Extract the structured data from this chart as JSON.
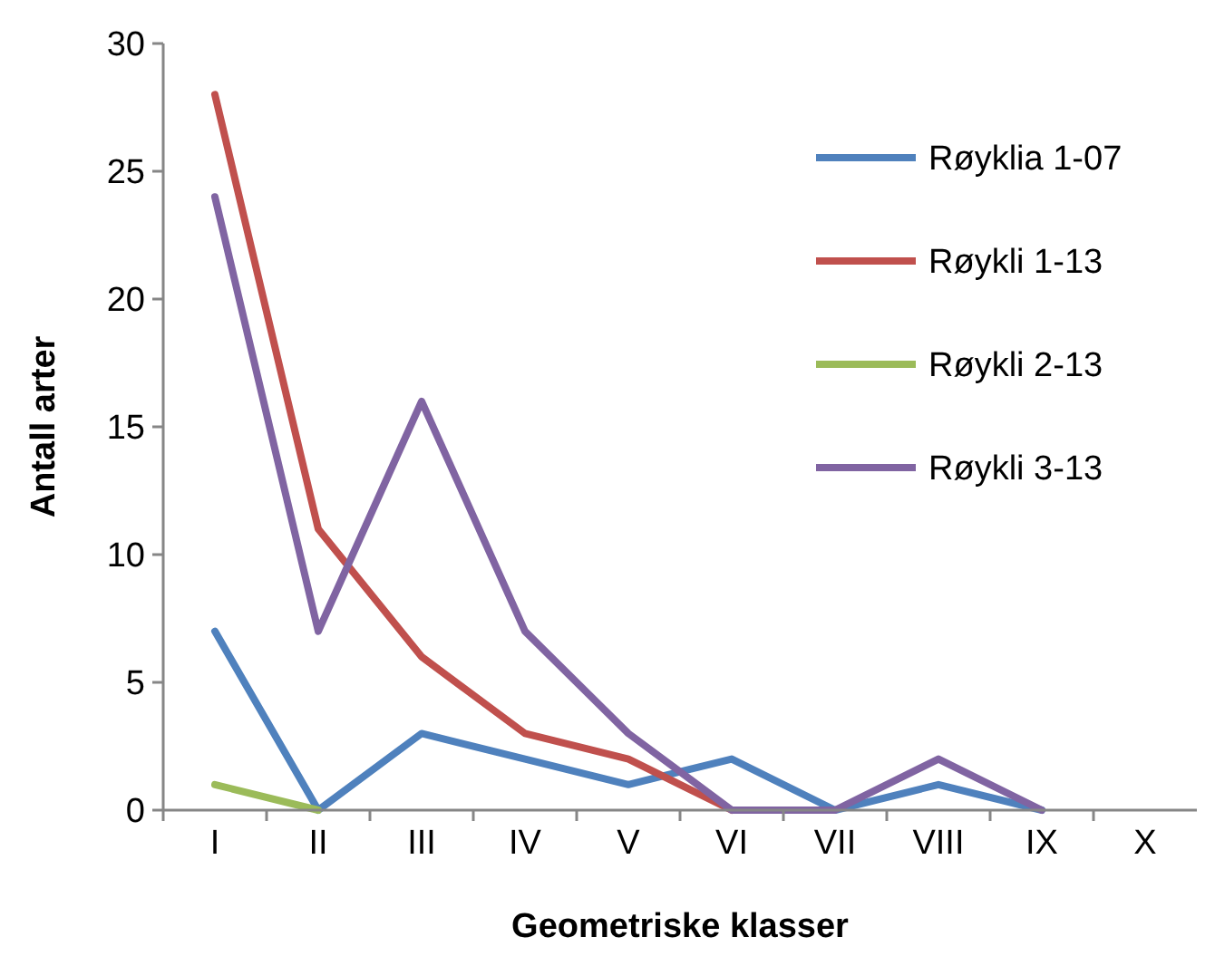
{
  "chart_data": {
    "type": "line",
    "xlabel": "Geometriske klasser",
    "ylabel": "Antall arter",
    "categories": [
      "I",
      "II",
      "III",
      "IV",
      "V",
      "VI",
      "VII",
      "VIII",
      "IX",
      "X"
    ],
    "ylim": [
      0,
      30
    ],
    "yticks": [
      0,
      5,
      10,
      15,
      20,
      25,
      30
    ],
    "grid": false,
    "legend": "top right",
    "marker": "none",
    "line_style": "solid",
    "series": [
      {
        "name": "Røyklia 1-07",
        "color": "#4f81bd",
        "values": [
          7,
          0,
          3,
          2,
          1,
          2,
          0,
          1,
          0,
          null
        ]
      },
      {
        "name": "Røykli 1-13",
        "color": "#c0504d",
        "values": [
          28,
          11,
          6,
          3,
          2,
          0,
          null,
          null,
          null,
          null
        ]
      },
      {
        "name": "Røykli 2-13",
        "color": "#9bbb59",
        "values": [
          1,
          0,
          null,
          null,
          null,
          null,
          null,
          null,
          null,
          null
        ]
      },
      {
        "name": "Røykli 3-13",
        "color": "#8064a2",
        "values": [
          24,
          7,
          16,
          7,
          3,
          0,
          0,
          2,
          0,
          null
        ]
      }
    ]
  }
}
